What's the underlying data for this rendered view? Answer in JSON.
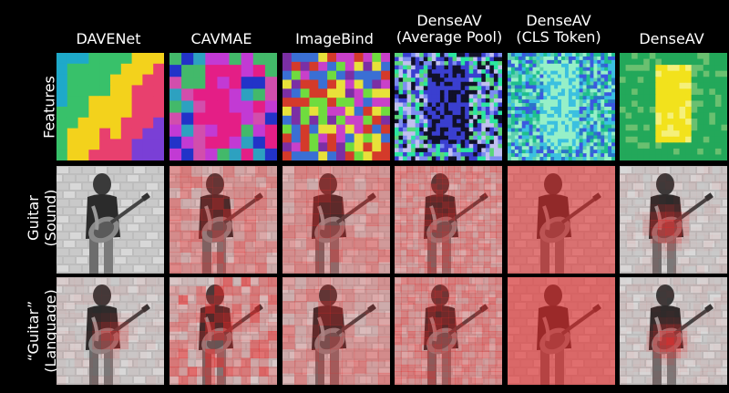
{
  "columns": [
    {
      "line1": "DAVENet",
      "line2": ""
    },
    {
      "line1": "CAVMAE",
      "line2": ""
    },
    {
      "line1": "ImageBind",
      "line2": ""
    },
    {
      "line1": "DenseAV",
      "line2": "(Average Pool)"
    },
    {
      "line1": "DenseAV",
      "line2": "(CLS Token)"
    },
    {
      "line1": "DenseAV",
      "line2": ""
    }
  ],
  "rows": [
    {
      "line1": "Features",
      "line2": ""
    },
    {
      "line1": "Guitar",
      "line2": "(Sound)"
    },
    {
      "line1": "“Guitar”",
      "line2": "(Language)"
    }
  ]
}
